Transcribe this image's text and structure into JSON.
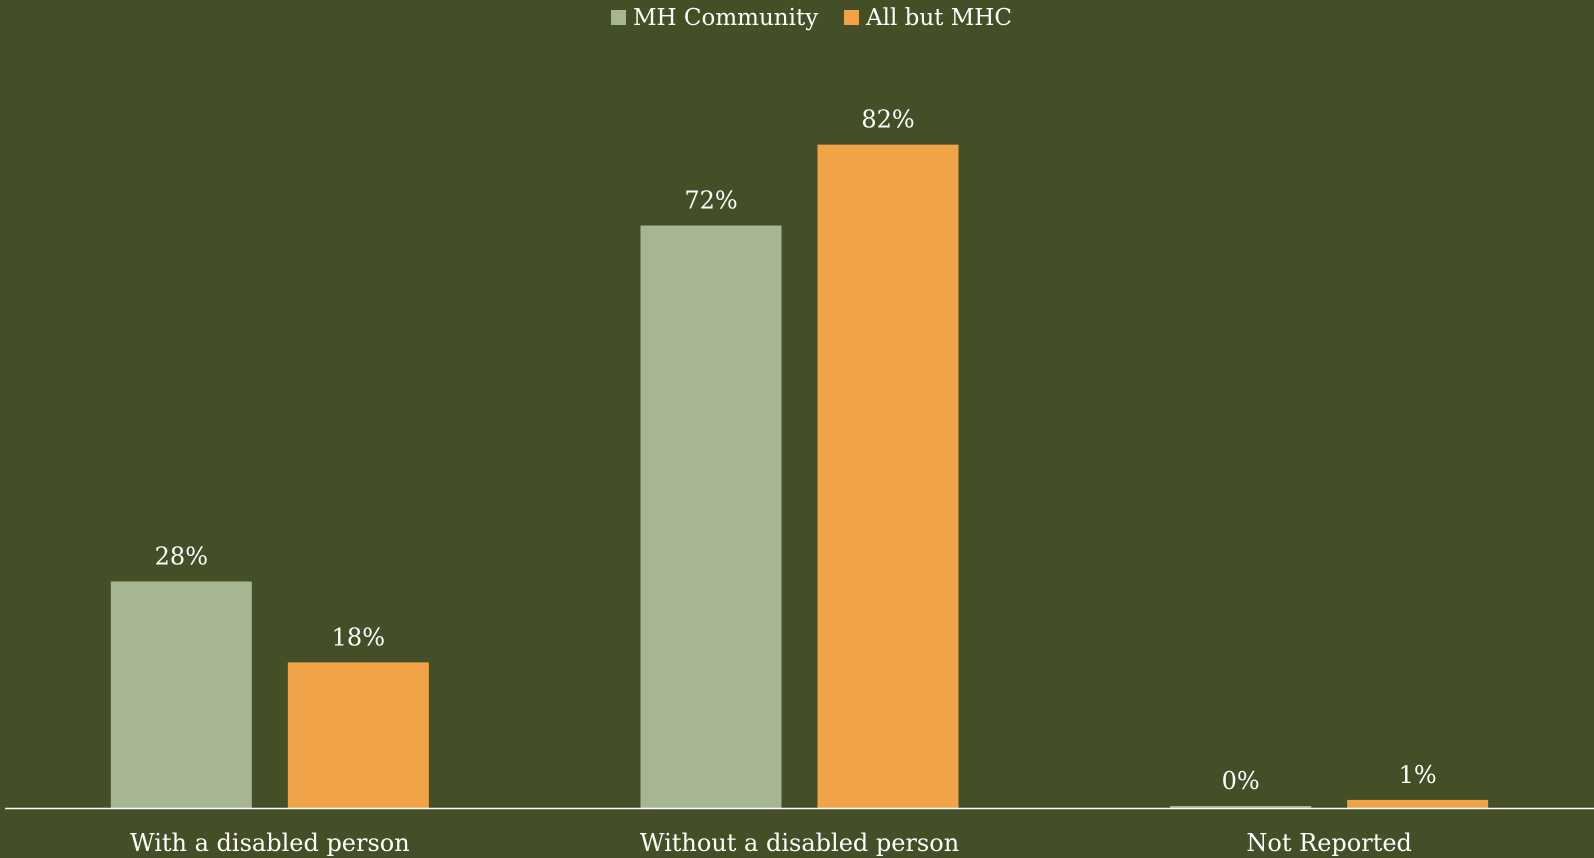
{
  "chart_data": {
    "type": "bar",
    "categories": [
      "With a disabled person",
      "Without a disabled person",
      "Not Reported"
    ],
    "series": [
      {
        "name": "MH Community",
        "values": [
          28,
          72,
          0
        ],
        "labels": [
          "28%",
          "72%",
          "0%"
        ],
        "color": "#a6b693"
      },
      {
        "name": "All but MHC",
        "values": [
          18,
          82,
          1
        ],
        "labels": [
          "18%",
          "82%",
          "1%"
        ],
        "color": "#f1a447"
      }
    ],
    "ylim": [
      0,
      100
    ],
    "grid": false,
    "legend_position": "top-center",
    "background_color": "#444e27",
    "axis_color": "#ffffff"
  }
}
